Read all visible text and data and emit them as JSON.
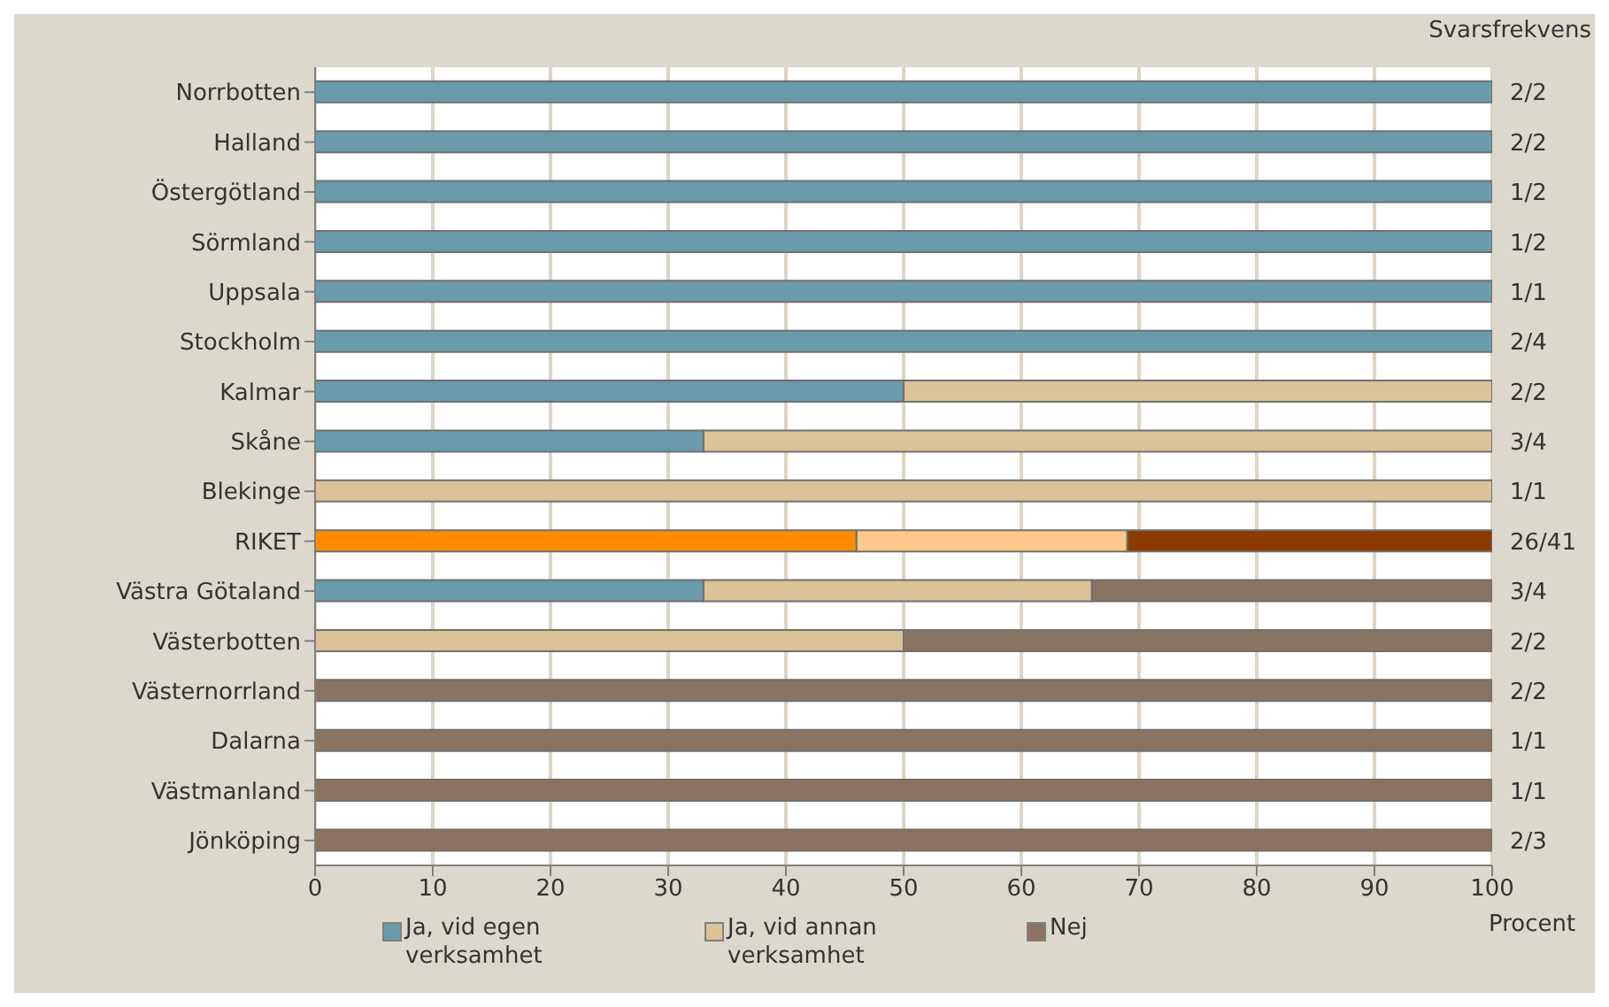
{
  "chart_data": {
    "type": "bar",
    "orientation": "horizontal",
    "stacked": true,
    "xlabel": "Procent",
    "y2label": "Svarsfrekvens",
    "categories": [
      "Norrbotten",
      "Halland",
      "Östergötland",
      "Sörmland",
      "Uppsala",
      "Stockholm",
      "Kalmar",
      "Skåne",
      "Blekinge",
      "RIKET",
      "Västra Götaland",
      "Västerbotten",
      "Västernorrland",
      "Dalarna",
      "Västmanland",
      "Jönköping"
    ],
    "series": [
      {
        "name": "Ja, vid egen verksamhet",
        "color": "#6a9aab",
        "colors": [
          "#6a9aab",
          "#6a9aab",
          "#6a9aab",
          "#6a9aab",
          "#6a9aab",
          "#6a9aab",
          "#6a9aab",
          "#6a9aab",
          "#6a9aab",
          "#ff8c00",
          "#6a9aab",
          "#6a9aab",
          "#6a9aab",
          "#6a9aab",
          "#6a9aab",
          "#6a9aab"
        ],
        "values": [
          100,
          100,
          100,
          100,
          100,
          100,
          50,
          33,
          null,
          46,
          33,
          null,
          null,
          null,
          null,
          null
        ]
      },
      {
        "name": "Ja, vid annan verksamhet",
        "color": "#dbc298",
        "colors": [
          "#dbc298",
          "#dbc298",
          "#dbc298",
          "#dbc298",
          "#dbc298",
          "#dbc298",
          "#dbc298",
          "#dbc298",
          "#dbc298",
          "#ffc88a",
          "#dbc298",
          "#dbc298",
          "#dbc298",
          "#dbc298",
          "#dbc298",
          "#dbc298"
        ],
        "values": [
          null,
          null,
          null,
          null,
          null,
          null,
          50,
          67,
          100,
          23,
          33,
          50,
          null,
          null,
          null,
          null
        ]
      },
      {
        "name": "Nej",
        "color": "#8b7361",
        "colors": [
          "#8b7361",
          "#8b7361",
          "#8b7361",
          "#8b7361",
          "#8b7361",
          "#8b7361",
          "#8b7361",
          "#8b7361",
          "#8b7361",
          "#8b3a00",
          "#8b7361",
          "#8b7361",
          "#8b7361",
          "#8b7361",
          "#8b7361",
          "#8b7361"
        ],
        "values": [
          null,
          null,
          null,
          null,
          null,
          null,
          null,
          null,
          null,
          31,
          34,
          50,
          100,
          100,
          100,
          100
        ]
      }
    ],
    "xlim": [
      0,
      100
    ],
    "xticks": [
      0,
      10,
      20,
      30,
      40,
      50,
      60,
      70,
      80,
      90,
      100
    ],
    "grid": "x",
    "legend": "bottom",
    "annotations": [
      "2/2",
      "2/2",
      "1/2",
      "1/2",
      "1/1",
      "2/4",
      "2/2",
      "3/4",
      "1/1",
      "26/41",
      "3/4",
      "2/2",
      "2/2",
      "1/1",
      "1/1",
      "2/3"
    ]
  }
}
